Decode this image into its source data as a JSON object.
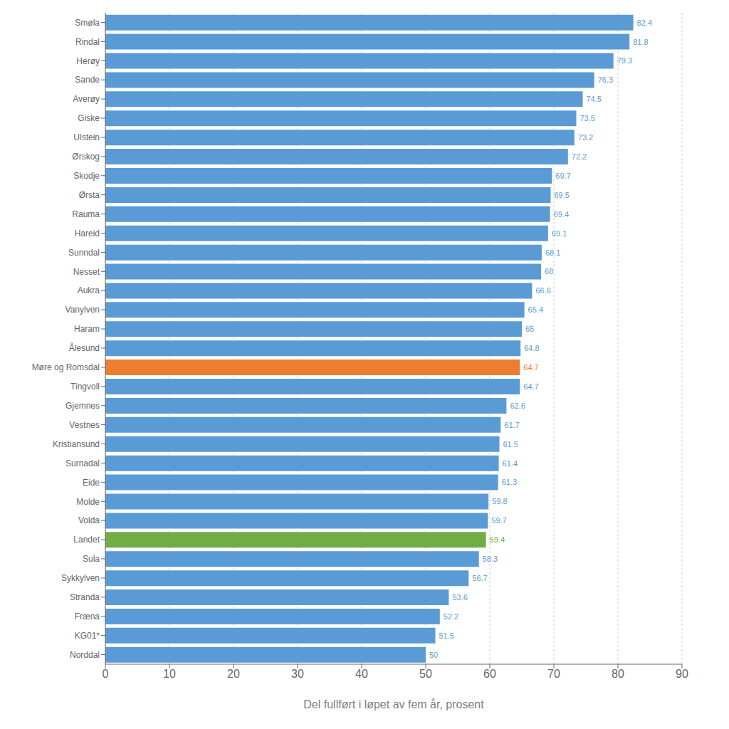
{
  "chart_data": {
    "type": "bar",
    "orientation": "horizontal",
    "xlabel": "Del fullført i løpet av fem år, prosent",
    "categories": [
      "Smøla",
      "Rindal",
      "Herøy",
      "Sande",
      "Averøy",
      "Giske",
      "Ulstein",
      "Ørskog",
      "Skodje",
      "Ørsta",
      "Rauma",
      "Hareid",
      "Sunndal",
      "Nesset",
      "Aukra",
      "Vanylven",
      "Haram",
      "Ålesund",
      "Møre og Romsdal",
      "Tingvoll",
      "Gjemnes",
      "Vestnes",
      "Kristiansund",
      "Surnadal",
      "Eide",
      "Molde",
      "Volda",
      "Landet",
      "Sula",
      "Sykkylven",
      "Stranda",
      "Fræna",
      "KG01*",
      "Norddal"
    ],
    "values": [
      82.4,
      81.8,
      79.3,
      76.3,
      74.5,
      73.5,
      73.2,
      72.2,
      69.7,
      69.5,
      69.4,
      69.1,
      68.1,
      68,
      66.6,
      65.4,
      65,
      64.8,
      64.7,
      64.7,
      62.6,
      61.7,
      61.5,
      61.4,
      61.3,
      59.8,
      59.7,
      59.4,
      58.3,
      56.7,
      53.6,
      52.2,
      51.5,
      50
    ],
    "colors": [
      "#5B9BD5",
      "#5B9BD5",
      "#5B9BD5",
      "#5B9BD5",
      "#5B9BD5",
      "#5B9BD5",
      "#5B9BD5",
      "#5B9BD5",
      "#5B9BD5",
      "#5B9BD5",
      "#5B9BD5",
      "#5B9BD5",
      "#5B9BD5",
      "#5B9BD5",
      "#5B9BD5",
      "#5B9BD5",
      "#5B9BD5",
      "#5B9BD5",
      "#ED7D31",
      "#5B9BD5",
      "#5B9BD5",
      "#5B9BD5",
      "#5B9BD5",
      "#5B9BD5",
      "#5B9BD5",
      "#5B9BD5",
      "#5B9BD5",
      "#70AD47",
      "#5B9BD5",
      "#5B9BD5",
      "#5B9BD5",
      "#5B9BD5",
      "#5B9BD5",
      "#5B9BD5"
    ],
    "xlim": [
      0,
      90
    ],
    "xticks": [
      0,
      10,
      20,
      30,
      40,
      50,
      60,
      70,
      80,
      90
    ],
    "grid": true,
    "data_labels": true
  }
}
